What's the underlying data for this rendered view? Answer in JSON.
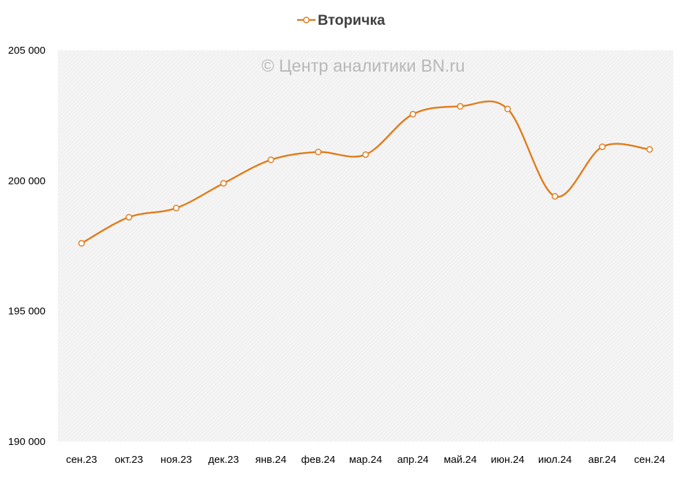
{
  "chart_data": {
    "type": "line",
    "title": "",
    "watermark": "© Центр аналитики BN.ru",
    "legend": {
      "position": "top",
      "entries": [
        "Вторичка"
      ]
    },
    "categories": [
      "сен.23",
      "окт.23",
      "ноя.23",
      "дек.23",
      "янв.24",
      "фев.24",
      "мар.24",
      "апр.24",
      "май.24",
      "июн.24",
      "июл.24",
      "авг.24",
      "сен.24"
    ],
    "series": [
      {
        "name": "Вторичка",
        "color": "#e07b1a",
        "values": [
          197600,
          198600,
          198950,
          199900,
          200800,
          201100,
          201000,
          202550,
          202850,
          202750,
          199400,
          201300,
          201200
        ]
      }
    ],
    "ylim": [
      190000,
      205000
    ],
    "yticks": [
      190000,
      195000,
      200000,
      205000
    ],
    "ytick_labels": [
      "190 000",
      "195 000",
      "200 000",
      "205 000"
    ],
    "grid": false,
    "xlabel": "",
    "ylabel": ""
  }
}
